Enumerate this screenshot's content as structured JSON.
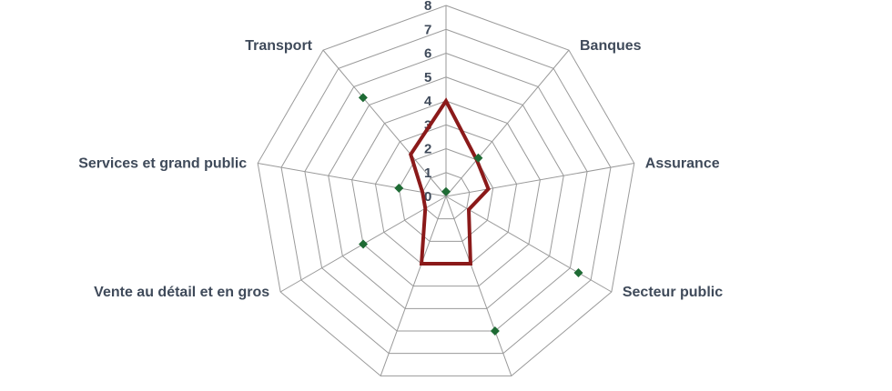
{
  "chart_data": {
    "type": "radar",
    "rlim": [
      0,
      8
    ],
    "ticks": [
      "0",
      "1",
      "2",
      "3",
      "4",
      "5",
      "6",
      "7",
      "8"
    ],
    "categories": [
      "",
      "Banques",
      "Assurance",
      "Secteur public",
      "",
      "",
      "Vente au détail et en gros",
      "Services et grand public",
      "Transport"
    ],
    "series": [
      {
        "style": "line",
        "color": "#8b1a1a",
        "values": [
          4.0,
          2.0,
          1.8,
          1.1,
          3.0,
          3.0,
          1.0,
          1.0,
          2.3
        ]
      },
      {
        "style": "markers",
        "color": "#1e6b34",
        "values": [
          0.2,
          2.1,
          null,
          6.4,
          6.0,
          null,
          4.0,
          2.0,
          5.4
        ]
      }
    ],
    "grid": true,
    "legend": "none"
  }
}
